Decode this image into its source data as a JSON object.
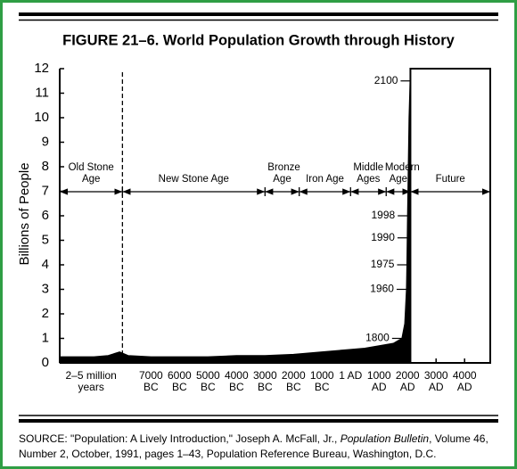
{
  "chart_data": {
    "type": "area",
    "title": "FIGURE 21–6. World Population Growth through History",
    "y_label": "Billions of People",
    "ylim": [
      0,
      12
    ],
    "yticks": [
      0,
      1,
      2,
      3,
      4,
      5,
      6,
      7,
      8,
      9,
      10,
      11,
      12
    ],
    "xlim": [
      -10200,
      4900
    ],
    "xticks": [
      {
        "value": -7000,
        "label": "7000 BC"
      },
      {
        "value": -6000,
        "label": "6000 BC"
      },
      {
        "value": -5000,
        "label": "5000 BC"
      },
      {
        "value": -4000,
        "label": "4000 BC"
      },
      {
        "value": -3000,
        "label": "3000 BC"
      },
      {
        "value": -2000,
        "label": "2000 BC"
      },
      {
        "value": -1000,
        "label": "1000 BC"
      },
      {
        "value": 1,
        "label": "1 AD"
      },
      {
        "value": 1000,
        "label": "1000 AD"
      },
      {
        "value": 2000,
        "label": "2000 AD"
      },
      {
        "value": 3000,
        "label": "3000 AD"
      },
      {
        "value": 4000,
        "label": "4000 AD"
      }
    ],
    "x_region_label": "2–5 million years",
    "x": [
      -10200,
      -9000,
      -8500,
      -8100,
      -7800,
      -7000,
      -6000,
      -5000,
      -4000,
      -3000,
      -2000,
      -1000,
      1,
      500,
      1000,
      1500,
      1800,
      1900,
      1960,
      1975,
      1990,
      1998,
      2050,
      2100
    ],
    "values": [
      0.25,
      0.25,
      0.3,
      0.45,
      0.3,
      0.25,
      0.25,
      0.25,
      0.3,
      0.3,
      0.35,
      0.45,
      0.55,
      0.6,
      0.7,
      0.8,
      1,
      1.6,
      3,
      4,
      5.3,
      6,
      10,
      12
    ],
    "color": "#000000",
    "annotations": [
      {
        "x": 1800,
        "y": 1
      },
      {
        "x": 1960,
        "y": 3
      },
      {
        "x": 1975,
        "y": 4
      },
      {
        "x": 1990,
        "y": 5.1
      },
      {
        "x": 1998,
        "y": 6
      },
      {
        "x": 2100,
        "y": 11.5
      }
    ],
    "periods": [
      {
        "label": "Old Stone Age",
        "start": -10200,
        "end": -8000
      },
      {
        "label": "New Stone Age",
        "start": -8000,
        "end": -3000
      },
      {
        "label": "Bronze Age",
        "start": -3000,
        "end": -1800
      },
      {
        "label": "Iron Age",
        "start": -1800,
        "end": 1
      },
      {
        "label": "Middle Ages",
        "start": 1,
        "end": 1250
      },
      {
        "label": "Modern Age",
        "start": 1250,
        "end": 2100
      },
      {
        "label": "Future",
        "start": 2100,
        "end": 4900
      }
    ],
    "source": [
      "SOURCE: \"Population: A Lively Introduction,\" Joseph A. McFall, Jr., ",
      "Population Bulletin",
      ", Volume 46, Number 2, October, 1991, pages 1–43, Population Reference Bureau, Washington, D.C."
    ]
  }
}
